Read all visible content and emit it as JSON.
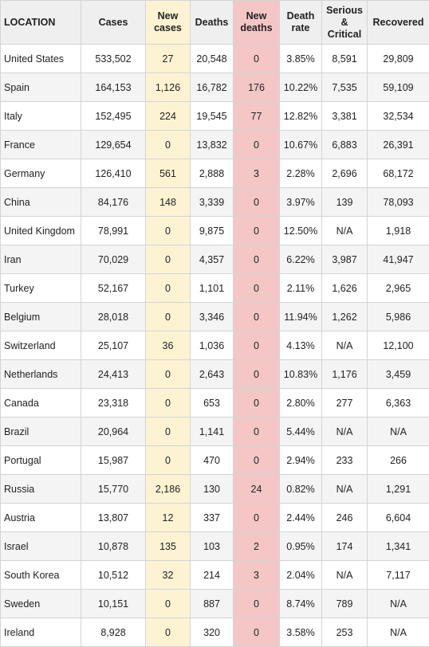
{
  "headers": {
    "location": "LOCATION",
    "cases": "Cases",
    "new_cases": "New cases",
    "deaths": "Deaths",
    "new_deaths": "New deaths",
    "death_rate": "Death rate",
    "serious_critical": "Serious & Critical",
    "recovered": "Recovered"
  },
  "colors": {
    "new_cases_bg": "#fdf3d3",
    "new_deaths_bg": "#f5c6c6",
    "header_bg": "#efefef",
    "stripe_bg": "#f4f4f4"
  },
  "rows": [
    {
      "location": "United States",
      "cases": "533,502",
      "new_cases": "27",
      "deaths": "20,548",
      "new_deaths": "0",
      "death_rate": "3.85%",
      "serious_critical": "8,591",
      "recovered": "29,809"
    },
    {
      "location": "Spain",
      "cases": "164,153",
      "new_cases": "1,126",
      "deaths": "16,782",
      "new_deaths": "176",
      "death_rate": "10.22%",
      "serious_critical": "7,535",
      "recovered": "59,109"
    },
    {
      "location": "Italy",
      "cases": "152,495",
      "new_cases": "224",
      "deaths": "19,545",
      "new_deaths": "77",
      "death_rate": "12.82%",
      "serious_critical": "3,381",
      "recovered": "32,534"
    },
    {
      "location": "France",
      "cases": "129,654",
      "new_cases": "0",
      "deaths": "13,832",
      "new_deaths": "0",
      "death_rate": "10.67%",
      "serious_critical": "6,883",
      "recovered": "26,391"
    },
    {
      "location": "Germany",
      "cases": "126,410",
      "new_cases": "561",
      "deaths": "2,888",
      "new_deaths": "3",
      "death_rate": "2.28%",
      "serious_critical": "2,696",
      "recovered": "68,172"
    },
    {
      "location": "China",
      "cases": "84,176",
      "new_cases": "148",
      "deaths": "3,339",
      "new_deaths": "0",
      "death_rate": "3.97%",
      "serious_critical": "139",
      "recovered": "78,093"
    },
    {
      "location": "United Kingdom",
      "cases": "78,991",
      "new_cases": "0",
      "deaths": "9,875",
      "new_deaths": "0",
      "death_rate": "12.50%",
      "serious_critical": "N/A",
      "recovered": "1,918"
    },
    {
      "location": "Iran",
      "cases": "70,029",
      "new_cases": "0",
      "deaths": "4,357",
      "new_deaths": "0",
      "death_rate": "6.22%",
      "serious_critical": "3,987",
      "recovered": "41,947"
    },
    {
      "location": "Turkey",
      "cases": "52,167",
      "new_cases": "0",
      "deaths": "1,101",
      "new_deaths": "0",
      "death_rate": "2.11%",
      "serious_critical": "1,626",
      "recovered": "2,965"
    },
    {
      "location": "Belgium",
      "cases": "28,018",
      "new_cases": "0",
      "deaths": "3,346",
      "new_deaths": "0",
      "death_rate": "11.94%",
      "serious_critical": "1,262",
      "recovered": "5,986"
    },
    {
      "location": "Switzerland",
      "cases": "25,107",
      "new_cases": "36",
      "deaths": "1,036",
      "new_deaths": "0",
      "death_rate": "4.13%",
      "serious_critical": "N/A",
      "recovered": "12,100"
    },
    {
      "location": "Netherlands",
      "cases": "24,413",
      "new_cases": "0",
      "deaths": "2,643",
      "new_deaths": "0",
      "death_rate": "10.83%",
      "serious_critical": "1,176",
      "recovered": "3,459"
    },
    {
      "location": "Canada",
      "cases": "23,318",
      "new_cases": "0",
      "deaths": "653",
      "new_deaths": "0",
      "death_rate": "2.80%",
      "serious_critical": "277",
      "recovered": "6,363"
    },
    {
      "location": "Brazil",
      "cases": "20,964",
      "new_cases": "0",
      "deaths": "1,141",
      "new_deaths": "0",
      "death_rate": "5.44%",
      "serious_critical": "N/A",
      "recovered": "N/A"
    },
    {
      "location": "Portugal",
      "cases": "15,987",
      "new_cases": "0",
      "deaths": "470",
      "new_deaths": "0",
      "death_rate": "2.94%",
      "serious_critical": "233",
      "recovered": "266"
    },
    {
      "location": "Russia",
      "cases": "15,770",
      "new_cases": "2,186",
      "deaths": "130",
      "new_deaths": "24",
      "death_rate": "0.82%",
      "serious_critical": "N/A",
      "recovered": "1,291"
    },
    {
      "location": "Austria",
      "cases": "13,807",
      "new_cases": "12",
      "deaths": "337",
      "new_deaths": "0",
      "death_rate": "2.44%",
      "serious_critical": "246",
      "recovered": "6,604"
    },
    {
      "location": "Israel",
      "cases": "10,878",
      "new_cases": "135",
      "deaths": "103",
      "new_deaths": "2",
      "death_rate": "0.95%",
      "serious_critical": "174",
      "recovered": "1,341"
    },
    {
      "location": "South Korea",
      "cases": "10,512",
      "new_cases": "32",
      "deaths": "214",
      "new_deaths": "3",
      "death_rate": "2.04%",
      "serious_critical": "N/A",
      "recovered": "7,117"
    },
    {
      "location": "Sweden",
      "cases": "10,151",
      "new_cases": "0",
      "deaths": "887",
      "new_deaths": "0",
      "death_rate": "8.74%",
      "serious_critical": "789",
      "recovered": "N/A"
    },
    {
      "location": "Ireland",
      "cases": "8,928",
      "new_cases": "0",
      "deaths": "320",
      "new_deaths": "0",
      "death_rate": "3.58%",
      "serious_critical": "253",
      "recovered": "N/A"
    }
  ]
}
